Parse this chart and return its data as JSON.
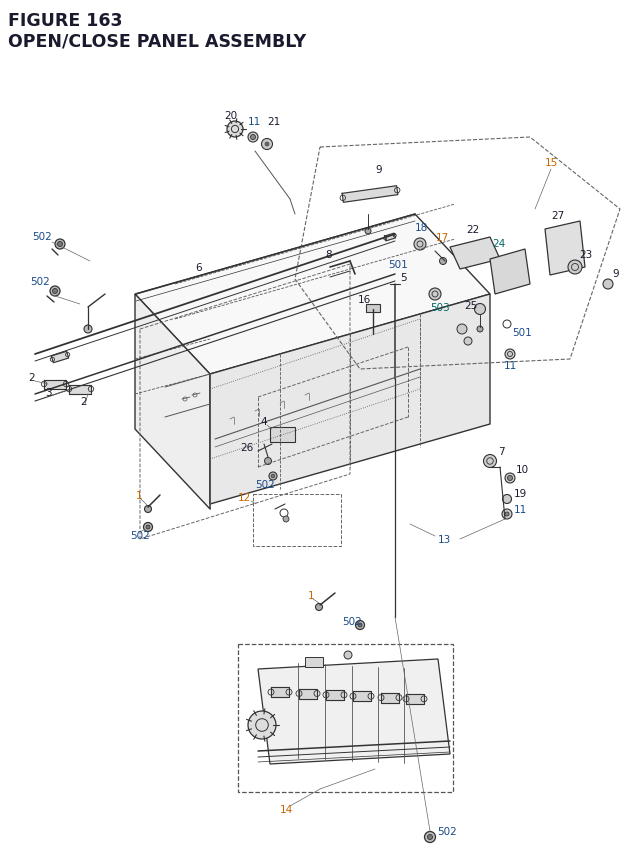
{
  "title_line1": "FIGURE 163",
  "title_line2": "OPEN/CLOSE PANEL ASSEMBLY",
  "bg_color": "#ffffff",
  "BLACK": "#1a1a2e",
  "ORANGE": "#cc6600",
  "BLUE": "#1a4a8a",
  "TEAL": "#006666",
  "DARK": "#333333",
  "MID": "#555555",
  "LIGHT": "#888888",
  "fig_width": 6.4,
  "fig_height": 8.62,
  "dpi": 100
}
